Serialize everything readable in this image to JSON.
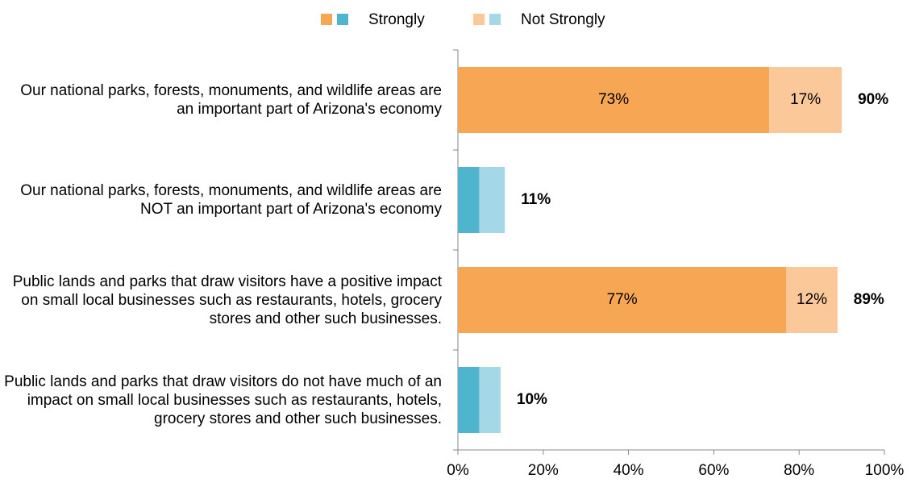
{
  "chart_data": {
    "type": "stacked_barh",
    "categories": [
      "Our national parks, forests, monuments, and wildlife areas are an important part of Arizona's economy",
      "Our national parks, forests, monuments, and wildlife areas are NOT an important part of Arizona's economy",
      "Public lands and parks that draw visitors have a positive impact on small local businesses such as restaurants, hotels, grocery stores and other such businesses.",
      "Public lands and parks that draw visitors do not have much of an impact on small local businesses such as restaurants, hotels, grocery stores and other such businesses."
    ],
    "series": [
      {
        "name": "Strongly",
        "colors": [
          "#f7a654",
          "#4fb5cf",
          "#f7a654",
          "#4fb5cf"
        ],
        "values": [
          73,
          5,
          77,
          5
        ],
        "value_labels": [
          "73%",
          null,
          "77%",
          null
        ]
      },
      {
        "name": "Not Strongly",
        "colors": [
          "#fbc89a",
          "#a4d8e6",
          "#fbc89a",
          "#a4d8e6"
        ],
        "values": [
          17,
          6,
          12,
          5
        ],
        "value_labels": [
          "17%",
          null,
          "12%",
          null
        ]
      }
    ],
    "totals": [
      90,
      11,
      89,
      10
    ],
    "totals_labels": [
      "90%",
      "11%",
      "89%",
      "10%"
    ],
    "xlim": [
      0,
      100
    ],
    "xticks": [
      {
        "value": 0,
        "label": "0%"
      },
      {
        "value": 20,
        "label": "20%"
      },
      {
        "value": 40,
        "label": "40%"
      },
      {
        "value": 60,
        "label": "60%"
      },
      {
        "value": 80,
        "label": "80%"
      },
      {
        "value": 100,
        "label": "100%"
      }
    ],
    "legend": "top"
  }
}
